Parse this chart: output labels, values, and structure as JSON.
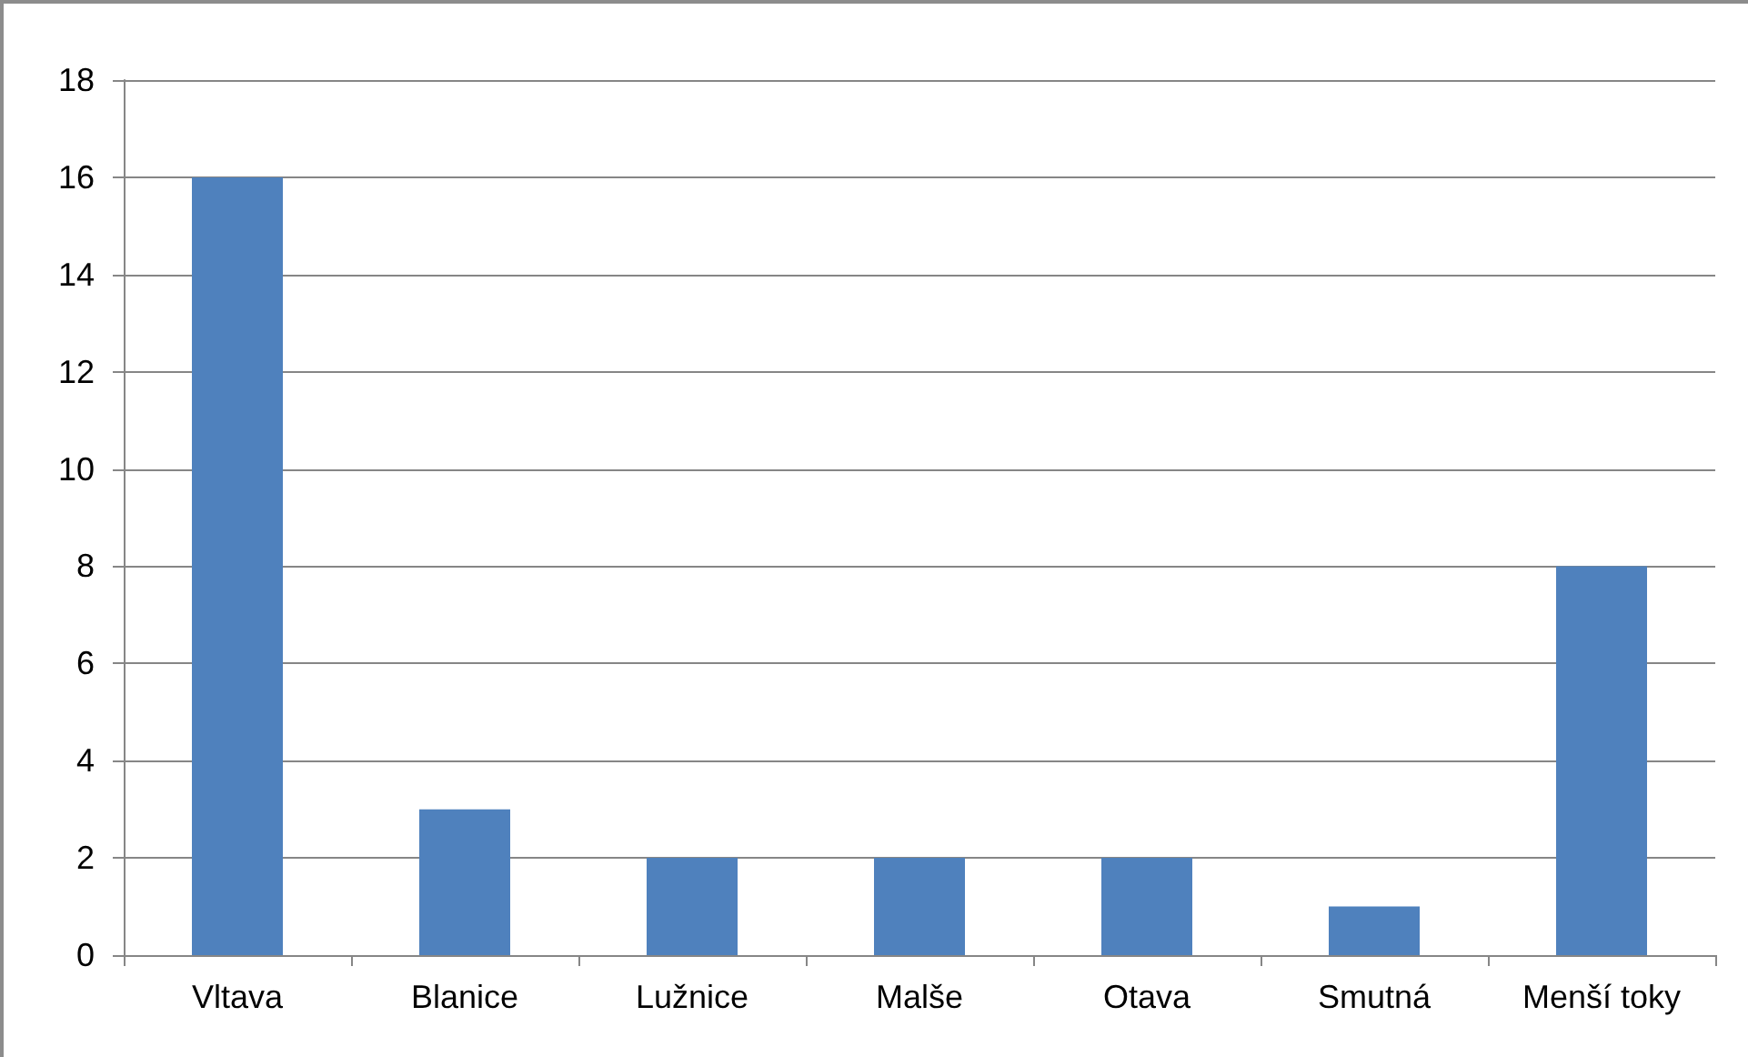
{
  "chart_data": {
    "type": "bar",
    "categories": [
      "Vltava",
      "Blanice",
      "Lužnice",
      "Malše",
      "Otava",
      "Smutná",
      "Menší toky"
    ],
    "values": [
      16,
      3,
      2,
      2,
      2,
      1,
      8
    ],
    "color": "#4f81bd",
    "ylim": [
      0,
      18
    ],
    "yticks": [
      0,
      2,
      4,
      6,
      8,
      10,
      12,
      14,
      16,
      18
    ],
    "grid": "y"
  }
}
